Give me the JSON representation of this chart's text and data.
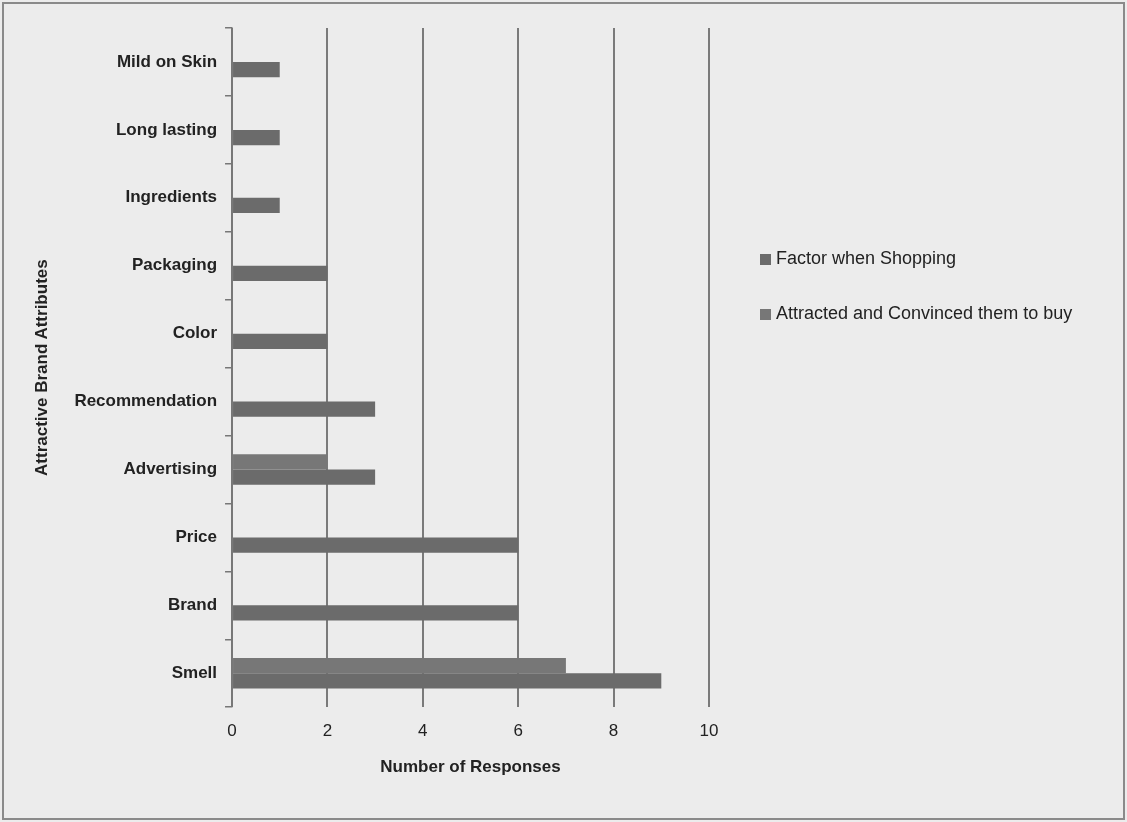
{
  "chart_data": {
    "type": "bar",
    "orientation": "horizontal",
    "xlabel": "Number of Responses",
    "ylabel": "Attractive Brand Attributes",
    "categories": [
      "Mild on Skin",
      "Long lasting",
      "Ingredients",
      "Packaging",
      "Color",
      "Recommendation",
      "Advertising",
      "Price",
      "Brand",
      "Smell"
    ],
    "series": [
      {
        "name": "Factor when Shopping",
        "color": "#6b6b6b",
        "values": [
          1,
          1,
          1,
          2,
          2,
          3,
          3,
          6,
          6,
          9
        ]
      },
      {
        "name": "Attracted and Convinced them to buy",
        "color": "#777777",
        "values": [
          null,
          null,
          null,
          null,
          null,
          null,
          2,
          null,
          null,
          7
        ]
      }
    ],
    "xlim": [
      0,
      10
    ],
    "xticks": [
      0,
      2,
      4,
      6,
      8,
      10
    ],
    "grid": "x",
    "legend": "right"
  }
}
